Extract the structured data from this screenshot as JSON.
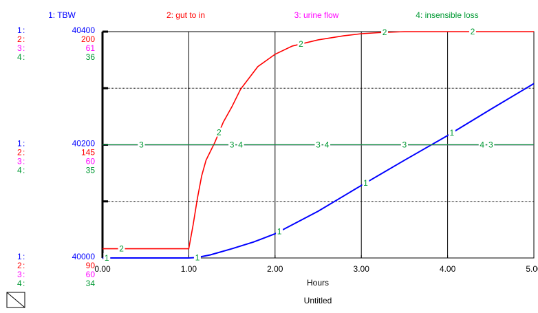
{
  "chart_data": {
    "type": "line",
    "title": "Untitled",
    "xlabel": "Hours",
    "xlim": [
      0,
      5
    ],
    "x_ticks": [
      "0.00",
      "1.00",
      "2.00",
      "3.00",
      "4.00",
      "5.00"
    ],
    "grid": true,
    "legend_position": "top",
    "series": [
      {
        "id": "1",
        "name": "1: TBW",
        "color": "#0000ff",
        "scale_labels": [
          "40400",
          "40200",
          "40000"
        ],
        "ylim": [
          39960,
          40400
        ],
        "x": [
          0,
          0.5,
          1.0,
          1.1,
          1.25,
          1.5,
          1.75,
          2.0,
          2.5,
          3.0,
          3.5,
          4.0,
          4.5,
          5.0
        ],
        "values": [
          39960,
          39960,
          39960,
          39961,
          39966,
          39978,
          39991,
          40007,
          40051,
          40101,
          40150,
          40198,
          40249,
          40299
        ]
      },
      {
        "id": "2",
        "name": "2: gut to in",
        "color": "#ff0000",
        "scale_labels": [
          "200",
          "145",
          "90"
        ],
        "ylim": [
          90,
          200
        ],
        "x": [
          0,
          0.5,
          1.0,
          1.05,
          1.1,
          1.15,
          1.2,
          1.3,
          1.4,
          1.5,
          1.6,
          1.8,
          2.0,
          2.2,
          2.5,
          2.8,
          3.0,
          3.2,
          3.5,
          4.0,
          4.5,
          5.0
        ],
        "values": [
          94.5,
          94.5,
          94.5,
          106,
          119,
          130,
          137.5,
          146,
          156,
          163.5,
          172,
          183,
          189,
          193,
          196,
          198,
          199,
          199.5,
          200,
          200,
          200,
          200
        ]
      },
      {
        "id": "3",
        "name": "3: urine flow",
        "color": "#ff00ff",
        "scale_labels": [
          "61",
          "60",
          "60"
        ],
        "ylim": [
          59,
          61
        ],
        "x": [
          0,
          5
        ],
        "values": [
          60,
          60
        ]
      },
      {
        "id": "4",
        "name": "4: insensible loss",
        "color": "#009933",
        "scale_labels": [
          "36",
          "35",
          "34"
        ],
        "ylim": [
          34,
          36
        ],
        "x": [
          0,
          5
        ],
        "values": [
          35,
          35
        ]
      }
    ]
  }
}
